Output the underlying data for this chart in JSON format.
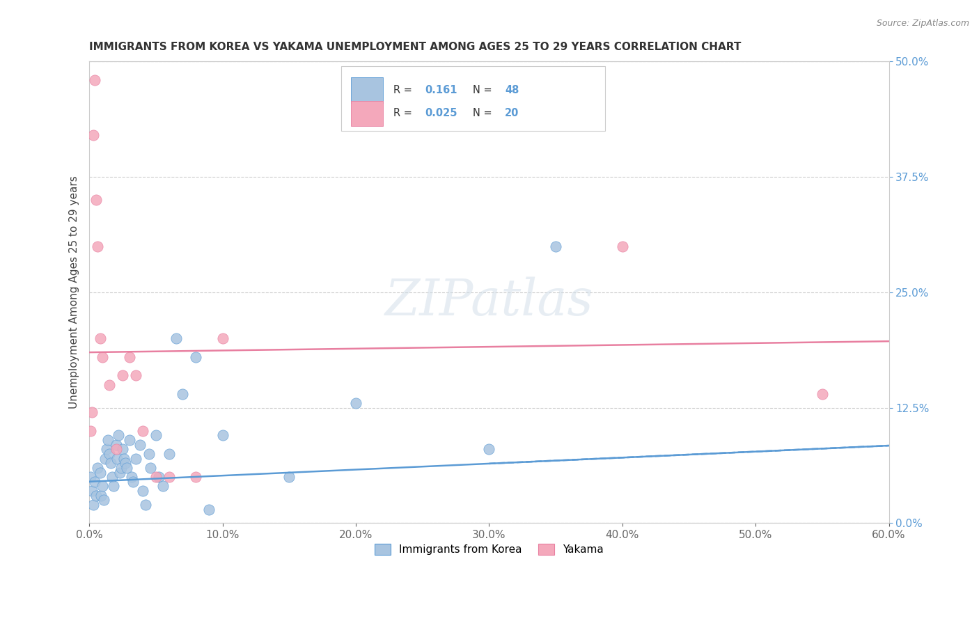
{
  "title": "IMMIGRANTS FROM KOREA VS YAKAMA UNEMPLOYMENT AMONG AGES 25 TO 29 YEARS CORRELATION CHART",
  "source": "Source: ZipAtlas.com",
  "ylabel": "Unemployment Among Ages 25 to 29 years",
  "xlabel_ticks": [
    "0.0%",
    "10.0%",
    "20.0%",
    "30.0%",
    "40.0%",
    "50.0%",
    "60.0%"
  ],
  "xlabel_vals": [
    0,
    10,
    20,
    30,
    40,
    50,
    60
  ],
  "ylabel_ticks_right": [
    "0.0%",
    "12.5%",
    "25.0%",
    "37.5%",
    "50.0%"
  ],
  "ylabel_vals_right": [
    0,
    12.5,
    25,
    37.5,
    50
  ],
  "xlim": [
    0,
    60
  ],
  "ylim": [
    0,
    50
  ],
  "legend_label1": "Immigrants from Korea",
  "legend_label2": "Yakama",
  "r1": "0.161",
  "n1": "48",
  "r2": "0.025",
  "n2": "20",
  "color_blue": "#a8c4e0",
  "color_pink": "#f4a8bb",
  "line_blue": "#5b9bd5",
  "line_pink": "#e87fa0",
  "watermark": "ZIPatlas",
  "korea_x": [
    0.2,
    0.3,
    0.1,
    0.5,
    0.4,
    0.6,
    0.8,
    0.9,
    1.0,
    1.1,
    1.2,
    1.3,
    1.4,
    1.5,
    1.6,
    1.7,
    1.8,
    2.0,
    2.1,
    2.2,
    2.3,
    2.4,
    2.5,
    2.6,
    2.7,
    2.8,
    3.0,
    3.2,
    3.3,
    3.5,
    3.8,
    4.0,
    4.2,
    4.5,
    4.6,
    5.0,
    5.2,
    5.5,
    6.0,
    6.5,
    7.0,
    8.0,
    9.0,
    10.0,
    15.0,
    20.0,
    30.0,
    35.0
  ],
  "korea_y": [
    3.5,
    2.0,
    5.0,
    3.0,
    4.5,
    6.0,
    5.5,
    3.0,
    4.0,
    2.5,
    7.0,
    8.0,
    9.0,
    7.5,
    6.5,
    5.0,
    4.0,
    8.5,
    7.0,
    9.5,
    5.5,
    6.0,
    8.0,
    7.0,
    6.5,
    6.0,
    9.0,
    5.0,
    4.5,
    7.0,
    8.5,
    3.5,
    2.0,
    7.5,
    6.0,
    9.5,
    5.0,
    4.0,
    7.5,
    20.0,
    14.0,
    18.0,
    1.5,
    9.5,
    5.0,
    13.0,
    8.0,
    30.0
  ],
  "yakama_x": [
    0.1,
    0.2,
    0.3,
    0.4,
    0.5,
    0.6,
    0.8,
    1.0,
    1.5,
    2.0,
    2.5,
    3.0,
    3.5,
    4.0,
    5.0,
    6.0,
    8.0,
    10.0,
    40.0,
    55.0
  ],
  "yakama_y": [
    10.0,
    12.0,
    42.0,
    48.0,
    35.0,
    30.0,
    20.0,
    18.0,
    15.0,
    8.0,
    16.0,
    18.0,
    16.0,
    10.0,
    5.0,
    5.0,
    5.0,
    20.0,
    30.0,
    14.0
  ]
}
